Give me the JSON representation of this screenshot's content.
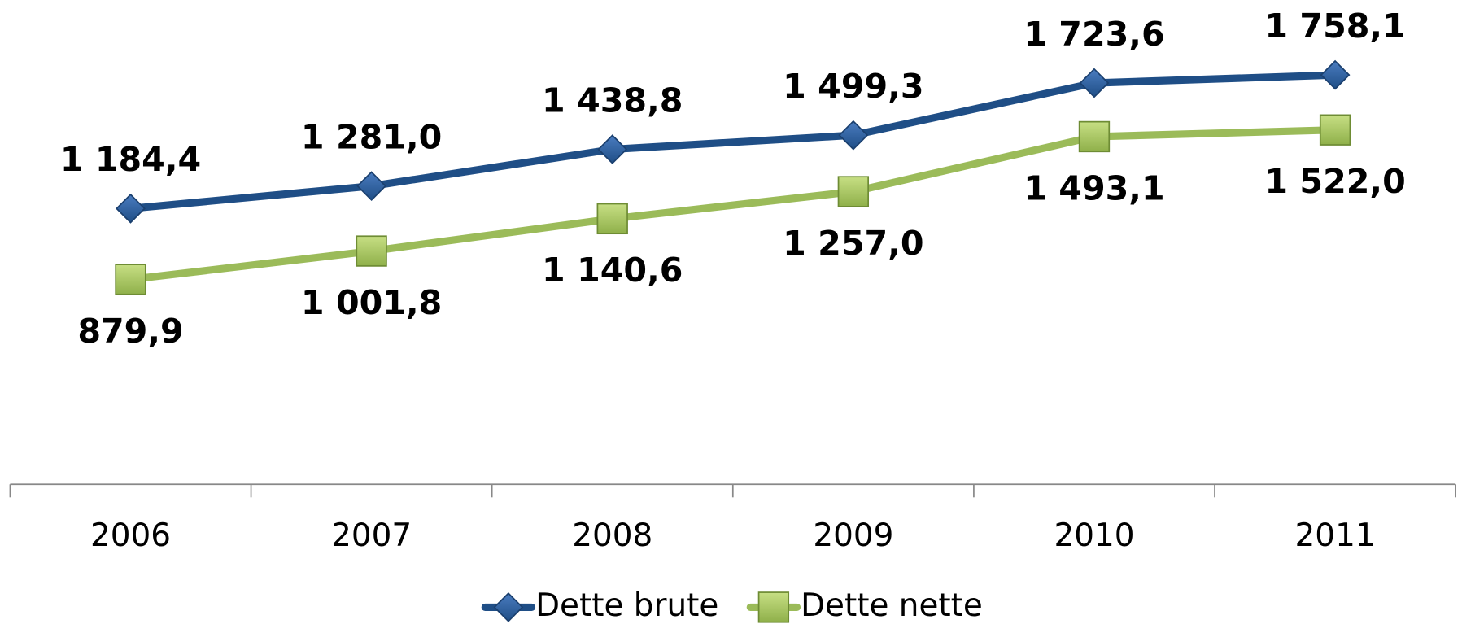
{
  "chart_data": {
    "type": "line",
    "categories": [
      "2006",
      "2007",
      "2008",
      "2009",
      "2010",
      "2011"
    ],
    "series": [
      {
        "name": "Dette brute",
        "color": "#1f4e86",
        "marker": "diamond",
        "values": [
          1184.4,
          1281.0,
          1438.8,
          1499.3,
          1723.6,
          1758.1
        ],
        "value_labels": [
          "1 184,4",
          "1 281,0",
          "1 438,8",
          "1 499,3",
          "1 723,6",
          "1 758,1"
        ]
      },
      {
        "name": "Dette nette",
        "color": "#9bbb59",
        "marker": "square",
        "values": [
          879.9,
          1001.8,
          1140.6,
          1257.0,
          1493.1,
          1522.0
        ],
        "value_labels": [
          "879,9",
          "1 001,8",
          "1 140,6",
          "1 257,0",
          "1 493,1",
          "1 522,0"
        ]
      }
    ],
    "ylim": [
      0,
      2000
    ],
    "legend": "bottom"
  }
}
